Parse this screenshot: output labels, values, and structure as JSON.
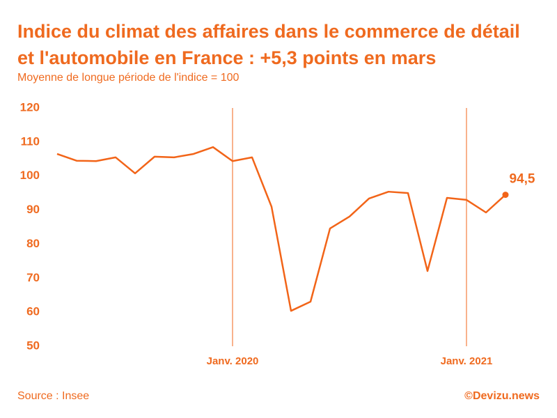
{
  "chart_data": {
    "type": "line",
    "title": "Indice du climat des affaires dans le commerce de détail et l'automobile en France : +5,3 points en mars",
    "subtitle": "Moyenne de longue période de l'indice = 100",
    "source": "Source : Insee",
    "credit": "©Devizu.news",
    "categories": [
      null,
      null,
      null,
      null,
      null,
      null,
      null,
      null,
      null,
      "Janv. 2020",
      null,
      null,
      null,
      null,
      null,
      null,
      null,
      null,
      null,
      null,
      null,
      "Janv. 2021",
      null,
      null
    ],
    "values": [
      106.5,
      104.5,
      104.4,
      105.5,
      100.8,
      105.7,
      105.5,
      106.5,
      108.5,
      104.4,
      105.5,
      91,
      60.4,
      63.1,
      84.6,
      88.1,
      93.4,
      95.4,
      95,
      72.1,
      93.6,
      93,
      89.3,
      94.5
    ],
    "value_labels": [
      null,
      null,
      null,
      null,
      null,
      null,
      null,
      null,
      null,
      null,
      null,
      null,
      null,
      null,
      null,
      null,
      null,
      null,
      null,
      null,
      null,
      null,
      null,
      "94,5"
    ],
    "color": "#f26418",
    "ylim": [
      50,
      120
    ],
    "yticks": [
      50,
      60,
      70,
      80,
      90,
      100,
      110,
      120
    ],
    "grid": false
  }
}
